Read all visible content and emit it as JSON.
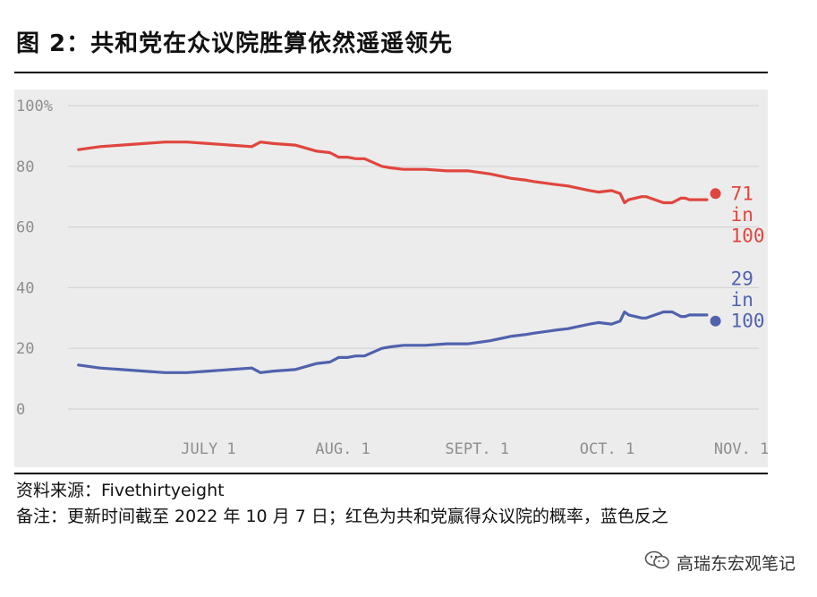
{
  "title": "图 2：共和党在众议院胜算依然遥遥领先",
  "source": "资料来源：Fivethirtyeight",
  "note": "备注：更新时间截至 2022 年 10 月 7 日；红色为共和党赢得众议院的概率，蓝色反之",
  "watermark": "高瑞东宏观笔记",
  "colors": {
    "republican": "#e0463d",
    "democrat": "#5062ad",
    "background": "#ececec",
    "grid": "#d4d4d4"
  },
  "chart_data": {
    "type": "line",
    "x_unit": "day offset from Jun 1 (2022)",
    "ylim": [
      0,
      100
    ],
    "yticks": [
      0,
      20,
      40,
      60,
      80,
      100
    ],
    "ytick_labels": [
      "0",
      "20",
      "40",
      "60",
      "80",
      "100%"
    ],
    "xticks": [
      30,
      61,
      92,
      122,
      153
    ],
    "xtick_labels": [
      "JULY 1",
      "AUG. 1",
      "SEPT. 1",
      "OCT. 1",
      "NOV. 1"
    ],
    "grid": true,
    "series": [
      {
        "color": "#e0463d",
        "x": [
          0,
          5,
          10,
          15,
          20,
          25,
          30,
          35,
          40,
          42,
          45,
          50,
          55,
          58,
          60,
          62,
          64,
          66,
          70,
          72,
          75,
          80,
          85,
          90,
          95,
          100,
          103,
          105,
          110,
          113,
          118,
          120,
          123,
          125,
          126,
          127,
          130,
          131,
          133,
          135,
          136,
          137,
          139,
          140,
          141,
          143,
          145,
          147
        ],
        "values": [
          85.5,
          86.5,
          87,
          87.5,
          88,
          88,
          87.5,
          87,
          86.5,
          88,
          87.5,
          87,
          85,
          84.5,
          83,
          83,
          82.5,
          82.5,
          80,
          79.5,
          79,
          79,
          78.5,
          78.5,
          77.5,
          76,
          75.5,
          75,
          74,
          73.5,
          72,
          71.5,
          72,
          71,
          68,
          69,
          70,
          70,
          69,
          68,
          68,
          68,
          69.5,
          69.5,
          69,
          69,
          69,
          71
        ],
        "end_label": [
          "71",
          "in",
          "100"
        ]
      },
      {
        "color": "#5062ad",
        "x": [
          0,
          5,
          10,
          15,
          20,
          25,
          30,
          35,
          40,
          42,
          45,
          50,
          55,
          58,
          60,
          62,
          64,
          66,
          70,
          72,
          75,
          80,
          85,
          90,
          95,
          100,
          103,
          105,
          110,
          113,
          118,
          120,
          123,
          125,
          126,
          127,
          130,
          131,
          133,
          135,
          136,
          137,
          139,
          140,
          141,
          143,
          145,
          147
        ],
        "values": [
          14.5,
          13.5,
          13,
          12.5,
          12,
          12,
          12.5,
          13,
          13.5,
          12,
          12.5,
          13,
          15,
          15.5,
          17,
          17,
          17.5,
          17.5,
          20,
          20.5,
          21,
          21,
          21.5,
          21.5,
          22.5,
          24,
          24.5,
          25,
          26,
          26.5,
          28,
          28.5,
          28,
          29,
          32,
          31,
          30,
          30,
          31,
          32,
          32,
          32,
          30.5,
          30.5,
          31,
          31,
          31,
          29
        ],
        "end_label": [
          "29",
          "in",
          "100"
        ]
      }
    ]
  }
}
